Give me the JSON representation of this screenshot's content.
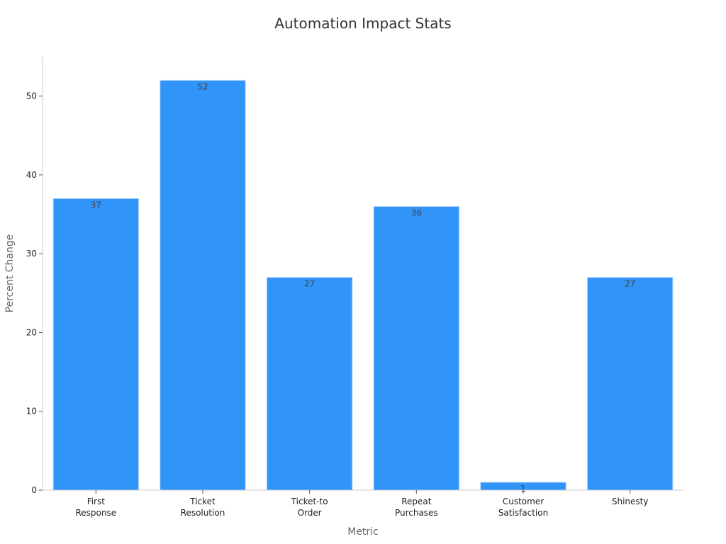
{
  "chart_data": {
    "type": "bar",
    "title": "Automation Impact Stats",
    "xlabel": "Metric",
    "ylabel": "Percent Change",
    "categories": [
      [
        "First",
        "Response"
      ],
      [
        "Ticket",
        "Resolution"
      ],
      [
        "Ticket-to",
        "Order"
      ],
      [
        "Repeat",
        "Purchases"
      ],
      [
        "Customer",
        "Satisfaction"
      ],
      [
        "Shinesty"
      ]
    ],
    "values": [
      37,
      52,
      27,
      36,
      1,
      27
    ],
    "data_labels": [
      "37",
      "52",
      "27",
      "36",
      "1",
      "27"
    ],
    "ylim": [
      0,
      55
    ],
    "yticks": [
      0,
      10,
      20,
      30,
      40,
      50
    ],
    "grid": false,
    "legend": "none",
    "bar_color": "#3094f9",
    "bar_edge_color": "#b9dafb"
  }
}
